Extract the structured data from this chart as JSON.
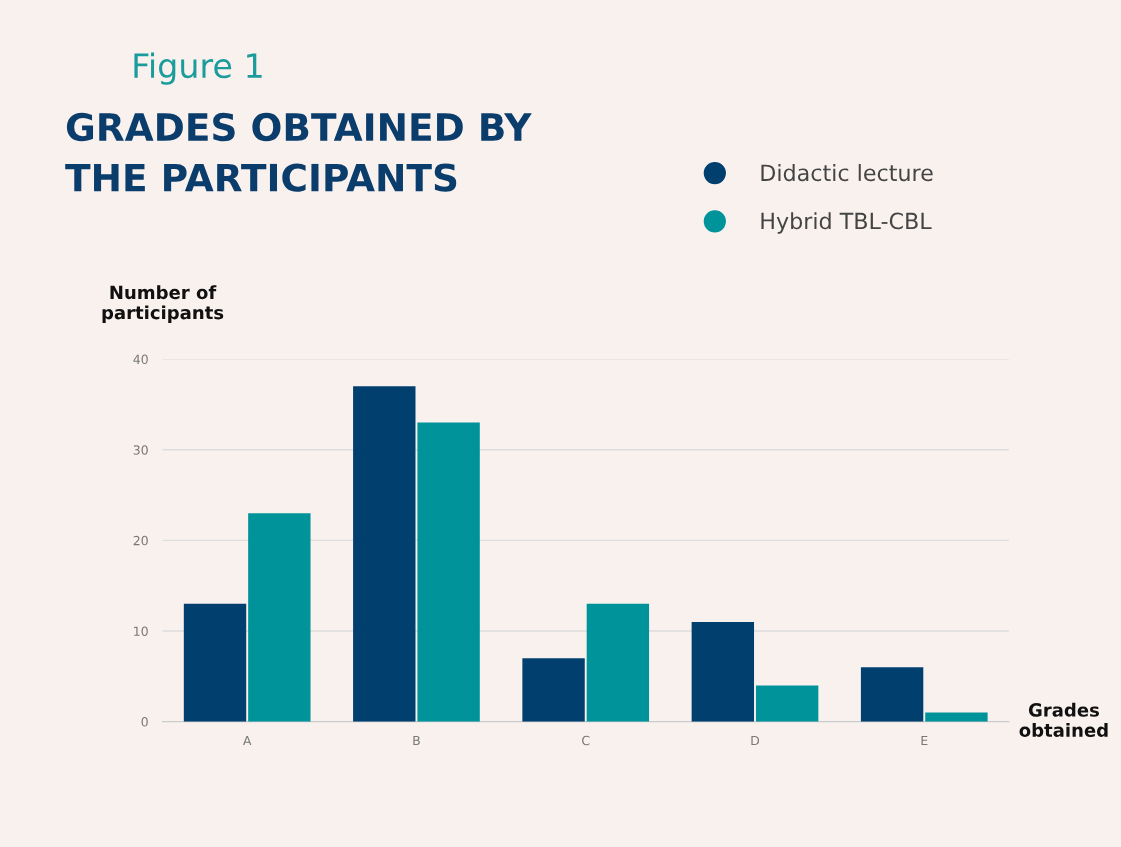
{
  "chart_data": {
    "type": "bar",
    "title": "Figure 1",
    "subtitle": "GRADES OBTAINED BY\nTHE PARTICIPANTS",
    "xlabel": "Grades\nobtained",
    "ylabel": "Number of\nparticipants",
    "categories": [
      "A",
      "B",
      "C",
      "D",
      "E"
    ],
    "series": [
      {
        "name": "Didactic lecture",
        "color": "#013f6f",
        "values": [
          13,
          37,
          7,
          11,
          6
        ]
      },
      {
        "name": "Hybrid TBL-CBL",
        "color": "#00939a",
        "values": [
          23,
          33,
          13,
          4,
          1
        ]
      }
    ],
    "ylim": [
      0,
      40
    ],
    "yticks": [
      0,
      10,
      20,
      30,
      40
    ],
    "grid": "y",
    "legend": "top right"
  }
}
